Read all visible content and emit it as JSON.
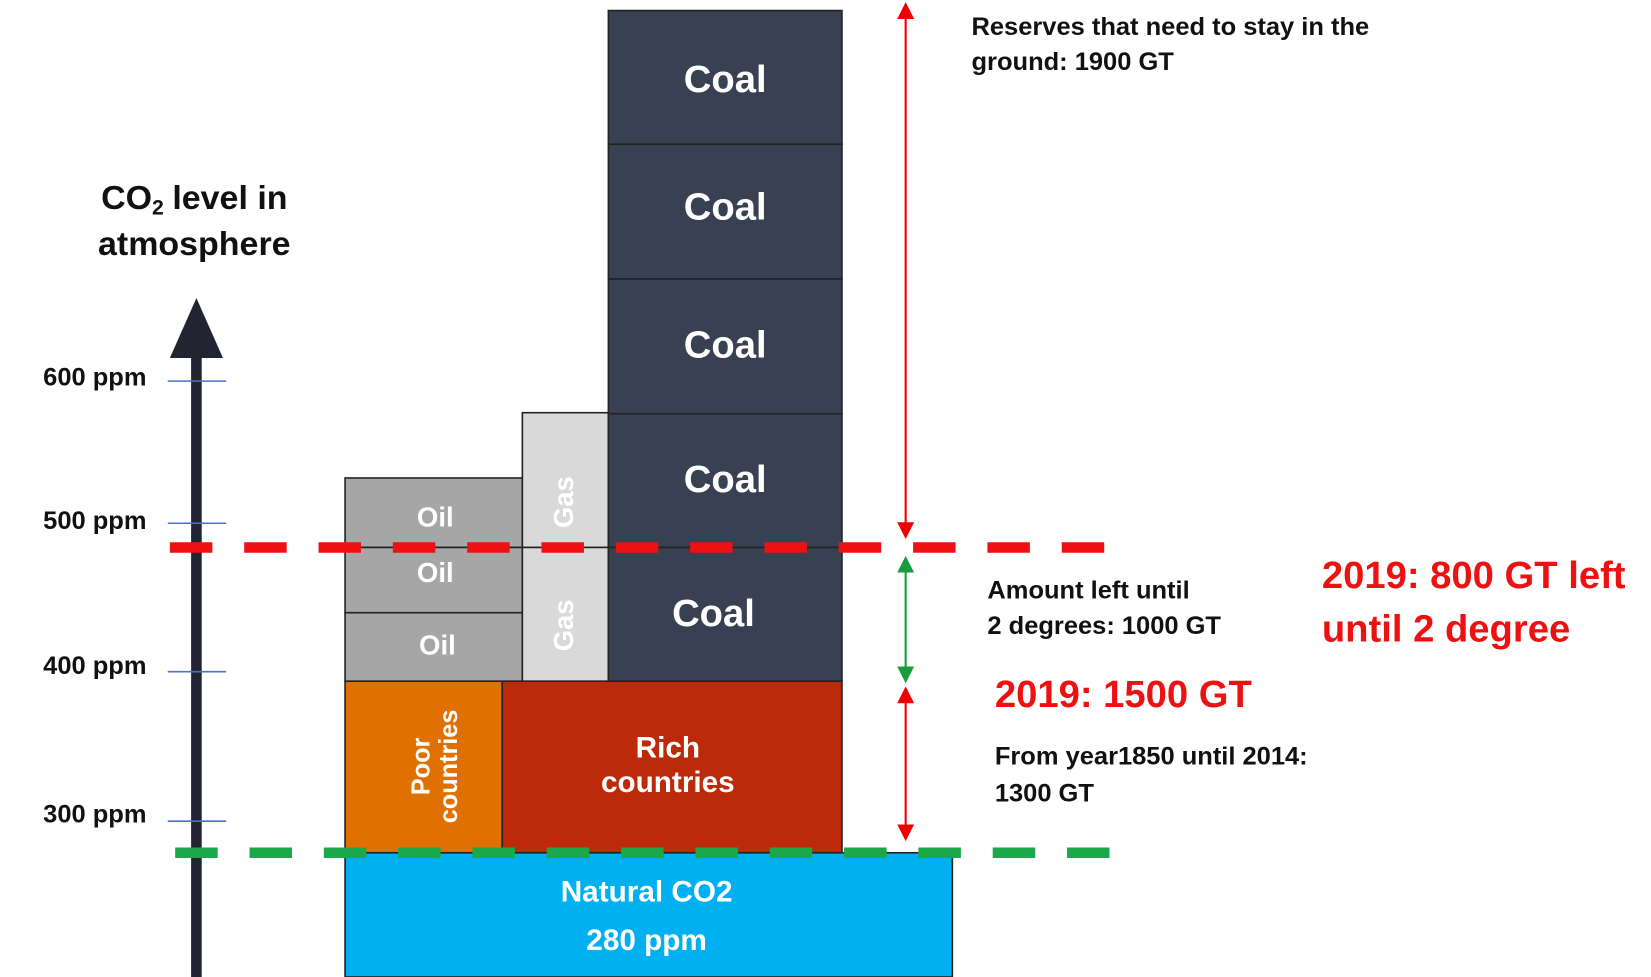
{
  "axis_title": {
    "prefix": "CO",
    "subscript": "2",
    "line1_rest": "level in",
    "line2": "atmosphere"
  },
  "axis_ticks": [
    "600 ppm",
    "500 ppm",
    "400 ppm",
    "300 ppm"
  ],
  "blocks": {
    "coal": [
      "Coal",
      "Coal",
      "Coal",
      "Coal",
      "Coal"
    ],
    "gas": [
      "Gas",
      "Gas"
    ],
    "oil": [
      "Oil",
      "Oil",
      "Oil"
    ],
    "poor": [
      "Poor",
      "countries"
    ],
    "rich": [
      "Rich",
      "countries"
    ],
    "natural": [
      "Natural CO2",
      "280 ppm"
    ]
  },
  "annotations": {
    "reserves": [
      "Reserves that need to stay in the",
      "ground: 1900 GT"
    ],
    "amount_left": [
      "Amount left until",
      "2 degrees: 1000 GT"
    ],
    "update_left": [
      "2019: 800 GT left",
      "until 2 degree"
    ],
    "update_used": "2019: 1500 GT",
    "history": [
      "From year1850 until 2014:",
      "1300 GT"
    ]
  }
}
